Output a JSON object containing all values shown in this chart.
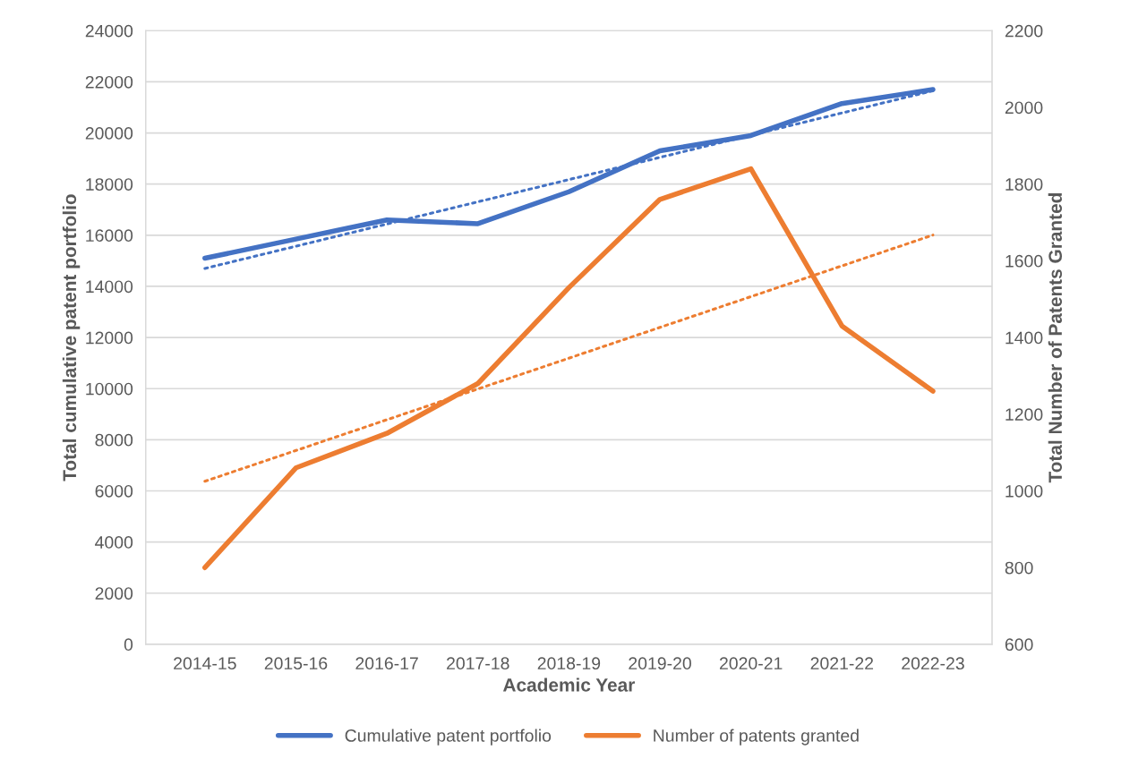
{
  "chart_data": {
    "type": "line",
    "xlabel": "Academic Year",
    "ylabel": "Total cumulative patent portfolio",
    "y2label": "Total Number of Patents Granted",
    "categories": [
      "2014-15",
      "2015-16",
      "2016-17",
      "2017-18",
      "2018-19",
      "2019-20",
      "2020-21",
      "2021-22",
      "2022-23"
    ],
    "series": [
      {
        "name": "Cumulative patent portfolio",
        "color": "#4472c4",
        "values": [
          15100,
          15850,
          16600,
          16450,
          17700,
          19300,
          19900,
          21150,
          21700
        ]
      },
      {
        "name": "Number of patents granted",
        "color": "#ed7d31",
        "axis": "y2",
        "values": [
          800,
          1060,
          1150,
          1280,
          1530,
          1760,
          1840,
          1430,
          1260
        ]
      },
      {
        "color": "#4472c4",
        "line_style": "dotted",
        "x": [
          "2014-15",
          "2022-23"
        ],
        "values": [
          14700,
          21650
        ]
      },
      {
        "color": "#ed7d31",
        "line_style": "dotted",
        "axis": "y2",
        "x": [
          "2014-15",
          "2022-23"
        ],
        "values": [
          1025,
          1667
        ]
      }
    ],
    "ylim": [
      0,
      24000
    ],
    "yticks": [
      0,
      2000,
      4000,
      6000,
      8000,
      10000,
      12000,
      14000,
      16000,
      18000,
      20000,
      22000,
      24000
    ],
    "y2lim": [
      600,
      2200
    ],
    "y2ticks": [
      600,
      800,
      1000,
      1200,
      1400,
      1600,
      1800,
      2000,
      2200
    ],
    "grid": "y",
    "legend": "bottom",
    "marker": "none"
  }
}
